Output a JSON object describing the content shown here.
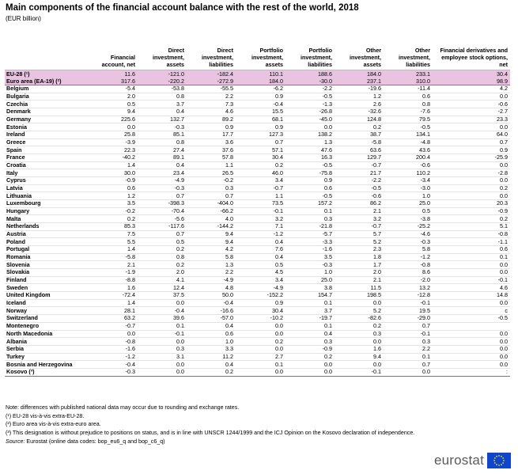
{
  "title": "Main components of the financial account balance with the rest of the world, 2018",
  "subtitle": "(EUR billion)",
  "table": {
    "headers": [
      "",
      "Financial account, net",
      "Direct investment, assets",
      "Direct investment, liabilities",
      "Portfolio investment, assets",
      "Portfolio investment, liabilities",
      "Other investment, assets",
      "Other investment, liabilities",
      "Financial derivatives and employee stock options, net"
    ],
    "aggregates": [
      [
        "EU-28 (¹)",
        "11.6",
        "-121.0",
        "-182.4",
        "110.1",
        "188.6",
        "184.0",
        "233.1",
        "30.4"
      ],
      [
        "Euro area (EA-19) (²)",
        "317.6",
        "-220.2",
        "-272.9",
        "184.0",
        "-30.0",
        "237.1",
        "310.0",
        "98.9"
      ]
    ],
    "eu_rows": [
      [
        "Belgium",
        "-5.4",
        "-53.8",
        "-55.5",
        "-6.2",
        "-2.2",
        "-19.6",
        "-11.4",
        "4.2"
      ],
      [
        "Bulgaria",
        "2.0",
        "0.8",
        "2.2",
        "0.9",
        "-0.5",
        "1.2",
        "0.6",
        "0.0"
      ],
      [
        "Czechia",
        "0.5",
        "3.7",
        "7.3",
        "-0.4",
        "-1.3",
        "2.6",
        "0.8",
        "-0.6"
      ],
      [
        "Denmark",
        "9.4",
        "0.4",
        "4.6",
        "15.5",
        "-26.8",
        "-32.6",
        "-7.6",
        "-2.7"
      ],
      [
        "Germany",
        "225.6",
        "132.7",
        "89.2",
        "68.1",
        "-45.0",
        "124.8",
        "79.5",
        "23.3"
      ],
      [
        "Estonia",
        "0.0",
        "-0.3",
        "0.9",
        "0.9",
        "0.0",
        "0.2",
        "-0.5",
        "0.0"
      ],
      [
        "Ireland",
        "25.8",
        "85.1",
        "17.7",
        "127.3",
        "138.2",
        "38.7",
        "134.1",
        "64.0"
      ],
      [
        "Greece",
        "-3.9",
        "0.8",
        "3.6",
        "0.7",
        "1.3",
        "-5.8",
        "-4.8",
        "0.7"
      ],
      [
        "Spain",
        "22.3",
        "27.4",
        "37.6",
        "57.1",
        "47.6",
        "63.6",
        "43.6",
        "0.9"
      ],
      [
        "France",
        "-40.2",
        "89.1",
        "57.8",
        "30.4",
        "16.3",
        "129.7",
        "200.4",
        "-25.9"
      ],
      [
        "Croatia",
        "1.4",
        "0.4",
        "1.1",
        "0.2",
        "-0.5",
        "-0.7",
        "-0.6",
        "0.0"
      ],
      [
        "Italy",
        "30.0",
        "23.4",
        "26.5",
        "46.0",
        "-75.8",
        "21.7",
        "110.2",
        "-2.8"
      ],
      [
        "Cyprus",
        "-0.9",
        "-4.9",
        "-0.2",
        "3.4",
        "0.9",
        "-2.2",
        "-3.4",
        "0.0"
      ],
      [
        "Latvia",
        "0.6",
        "-0.3",
        "0.3",
        "-0.7",
        "0.6",
        "-0.5",
        "-3.0",
        "0.2"
      ],
      [
        "Lithuania",
        "1.2",
        "0.7",
        "0.7",
        "1.1",
        "-0.5",
        "-0.6",
        "1.0",
        "0.0"
      ],
      [
        "Luxembourg",
        "3.5",
        "-398.3",
        "-404.0",
        "73.5",
        "157.2",
        "86.2",
        "25.0",
        "20.3"
      ],
      [
        "Hungary",
        "-0.2",
        "-70.4",
        "-66.2",
        "-0.1",
        "0.1",
        "2.1",
        "0.5",
        "-0.9"
      ],
      [
        "Malta",
        "0.2",
        "-5.6",
        "4.0",
        "3.2",
        "0.3",
        "3.2",
        "-3.8",
        "0.2"
      ],
      [
        "Netherlands",
        "85.3",
        "-117.6",
        "-144.2",
        "7.1",
        "-21.8",
        "-0.7",
        "-25.2",
        "5.1"
      ],
      [
        "Austria",
        "7.5",
        "0.7",
        "9.4",
        "-1.2",
        "-5.7",
        "5.7",
        "-4.6",
        "-0.8"
      ],
      [
        "Poland",
        "5.5",
        "0.5",
        "9.4",
        "0.4",
        "-3.3",
        "5.2",
        "-0.3",
        "-1.1"
      ],
      [
        "Portugal",
        "1.4",
        "0.2",
        "4.2",
        "7.6",
        "-1.6",
        "2.3",
        "5.8",
        "0.6"
      ],
      [
        "Romania",
        "-5.8",
        "0.8",
        "5.8",
        "0.4",
        "3.5",
        "1.8",
        "-1.2",
        "0.1"
      ],
      [
        "Slovenia",
        "2.1",
        "0.2",
        "1.3",
        "0.5",
        "-0.3",
        "1.7",
        "-0.8",
        "0.0"
      ],
      [
        "Slovakia",
        "-1.9",
        "2.0",
        "2.2",
        "4.5",
        "1.0",
        "2.0",
        "8.6",
        "0.0"
      ],
      [
        "Finland",
        "-8.8",
        "4.1",
        "-4.9",
        "3.4",
        "25.0",
        "2.1",
        "-2.0",
        "-0.1"
      ],
      [
        "Sweden",
        "1.6",
        "12.4",
        "4.8",
        "-4.9",
        "3.8",
        "11.5",
        "13.2",
        "4.6"
      ],
      [
        "United Kingdom",
        "-72.4",
        "37.5",
        "50.0",
        "-152.2",
        "154.7",
        "198.5",
        "-12.8",
        "14.8"
      ]
    ],
    "efta_rows": [
      [
        "Iceland",
        "1.4",
        "0.0",
        "-0.4",
        "0.9",
        "0.1",
        "0.0",
        "-0.1",
        "0.0"
      ],
      [
        "Norway",
        "28.1",
        "-0.4",
        "-16.6",
        "30.4",
        "3.7",
        "5.2",
        "19.5",
        "c"
      ],
      [
        "Switzerland",
        "63.2",
        "39.6",
        "-57.0",
        "-10.2",
        "-19.7",
        "-82.6",
        "-29.0",
        "-0.5"
      ]
    ],
    "candidate_rows": [
      [
        "Montenegro",
        "-0.7",
        "0.1",
        "0.4",
        "0.0",
        "0.1",
        "0.2",
        "0.7",
        ""
      ],
      [
        "North Macedonia",
        "0.0",
        "-0.1",
        "0.6",
        "0.0",
        "0.4",
        "0.3",
        "-0.1",
        "0.0"
      ],
      [
        "Albania",
        "-0.8",
        "0.0",
        "1.0",
        "0.2",
        "0.3",
        "0.0",
        "0.3",
        "0.0"
      ],
      [
        "Serbia",
        "-1.6",
        "0.3",
        "3.3",
        "0.0",
        "-0.9",
        "1.6",
        "2.2",
        "0.0"
      ],
      [
        "Turkey",
        "-1.2",
        "3.1",
        "11.2",
        "2.7",
        "0.2",
        "9.4",
        "0.1",
        "0.0"
      ],
      [
        "Bosnia and Herzegovina",
        "-0.4",
        "0.0",
        "0.4",
        "0.1",
        "0.0",
        "0.0",
        "0.7",
        "0.0"
      ],
      [
        "Kosovo (³)",
        "-0.3",
        "0.0",
        "0.2",
        "0.0",
        "0.0",
        "-0.1",
        "0.0",
        ":"
      ]
    ]
  },
  "footnotes": [
    "Note: differences with published national data may occur due to rounding and exchange rates.",
    "(¹) EU-28 vis-à-vis extra-EU-28.",
    "(²) Euro area vis-à-vis extra-euro area.",
    "(³) This designation is without prejudice to positions on status, and is in line with UNSCR 1244/1999 and the ICJ Opinion on the Kosovo declaration of independence."
  ],
  "source": {
    "label": "Source:",
    "text": " Eurostat (online data codes: bop_eu6_q and bop_c6_q)"
  },
  "logo": {
    "text": "eurostat",
    "flag_color": "#0e47cb",
    "star_color": "#ffd617"
  },
  "colors": {
    "aggregate_row_bg": "#e9c4e1"
  }
}
